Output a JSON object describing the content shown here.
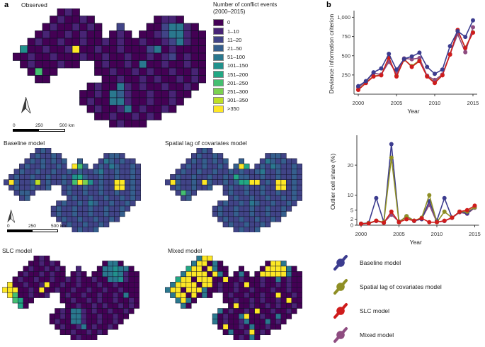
{
  "panels": {
    "a_label": "a",
    "b_label": "b"
  },
  "maps": {
    "legend": {
      "title_line1": "Number of conflict events",
      "title_line2": "(2000–2015)",
      "classes": [
        {
          "label": "0",
          "color": "#440154"
        },
        {
          "label": "1–10",
          "color": "#482475"
        },
        {
          "label": "11–20",
          "color": "#414487"
        },
        {
          "label": "21–50",
          "color": "#355f8d"
        },
        {
          "label": "51–100",
          "color": "#2a788e"
        },
        {
          "label": "101–150",
          "color": "#21918c"
        },
        {
          "label": "151–200",
          "color": "#22a884"
        },
        {
          "label": "201–250",
          "color": "#44bf70"
        },
        {
          "label": "251–300",
          "color": "#7ad151"
        },
        {
          "label": "301–350",
          "color": "#bddf26"
        },
        {
          "label": ">350",
          "color": "#fde725"
        }
      ]
    },
    "scale_bar": {
      "labels": [
        "0",
        "250",
        "500 km"
      ]
    },
    "items": [
      {
        "id": "observed",
        "title": "Observed",
        "grid": [
          "......010.................",
          ".....010010........0110...",
          "....01001010..2...0024410.",
          "...010010100.010.001244100",
          "..010010010010100100124100",
          ".5001001a00100100024010000",
          "00100100010010010010120100",
          ".01000100..010010400100100",
          "..0700.....001001010010010",
          "...00.......00100101001010",
          "..........010041010010010.",
          ".........001043100100100..",
          ".........01004410010010...",
          "..........010014010010....",
          "...........001001010......",
          ".............01000........"
        ]
      },
      {
        "id": "baseline",
        "title": "Baseline model",
        "grid": [
          "......232.................",
          ".....232232........2332...",
          "....23232323..3...2432322.",
          "...232232232.a73.232432232",
          "..232232232232322342232232",
          ".2322322322325632232232232",
          "2a322392322327a852322aa232",
          ".23223223..2322322322aa232",
          "..2332.....232232232232232",
          "...23.......23223223223232",
          "..........232232432232232.",
          ".........232232232232232..",
          ".........23223223223223...",
          "..........232232232232....",
          "...........232232232......",
          ".............23223........"
        ]
      },
      {
        "id": "spatial_lag",
        "title": "Spatial lag of covariates model",
        "grid": [
          "......232.................",
          ".....232232........2332...",
          "....23232323..3...2432322.",
          "...232232232.3a6.232432232",
          "..232232232232322342232232",
          ".2322322322326332232232232",
          "2a32232a32232366aa232aa232",
          ".23223223..2322322322aa232",
          "..2732.....232232232232232",
          "...23.......23223223223232",
          "..........232232432232232.",
          ".........232232232232232..",
          ".........23223223223223...",
          "..........232232232232....",
          "...........232232232......",
          ".............23223........"
        ]
      },
      {
        "id": "slc",
        "title": "SLC model",
        "grid": [
          "......010.................",
          ".....001010........0440...",
          "....01001010..1...0445440.",
          "...010010100.010.004454100",
          "..010010010010100100445100",
          ".a001001a00100100010010000",
          "aaa0010a001001001001001000",
          ".a7001001..010010010010400",
          "..7600.....001001010010010",
          "...60.......00100101001010",
          "..........010441010010010.",
          ".........001044100100100..",
          ".........01004410010010...",
          "..........010014010010....",
          "...........001001010......",
          ".............01000........"
        ]
      },
      {
        "id": "mixed",
        "title": "Mixed model",
        "grid": [
          "......4aa.................",
          ".....4aa040........0aa4...",
          "....6aa0a400..0...0aaaa40.",
          "...4aaaa0a40.040.0aaaaa400",
          "..6aa0aaa00a00100010040100",
          ".4aaaa0aa010010a0010010100",
          "4aa0aaa4001001001000100100",
          ".4aa0a040..0100100100a0010",
          "..4a40.....001001010010a00",
          "...40.......0a001001010010",
          "..........4010010a0010010.",
          ".........401004a00100400..",
          ".........40100140004010...",
          "..........0a0010400100....",
          "...........04001a010......",
          ".............01040........"
        ]
      }
    ]
  },
  "chart_data": [
    {
      "type": "line",
      "title": "",
      "xlabel": "Year",
      "ylabel": "Deviance information criterion",
      "x": [
        2000,
        2001,
        2002,
        2003,
        2004,
        2005,
        2006,
        2007,
        2008,
        2009,
        2010,
        2011,
        2012,
        2013,
        2014,
        2015
      ],
      "xticks": [
        2000,
        2005,
        2010,
        2015
      ],
      "yticks": [
        250,
        500,
        750,
        1000
      ],
      "ytick_labels": [
        "250",
        "500",
        "750",
        "1,000"
      ],
      "ylim": [
        0,
        1050
      ],
      "grid": "off",
      "series": [
        {
          "name": "Spatial lag of covariates model",
          "color": "#8f8f25",
          "values": [
            60,
            150,
            235,
            250,
            470,
            240,
            450,
            365,
            440,
            235,
            155,
            250,
            520,
            825,
            605,
            805
          ]
        },
        {
          "name": "Mixed model",
          "color": "#8e4c80",
          "values": [
            90,
            165,
            275,
            255,
            420,
            280,
            465,
            455,
            470,
            240,
            185,
            255,
            520,
            780,
            545,
            870
          ]
        },
        {
          "name": "SLC model",
          "color": "#cf1c1c",
          "values": [
            55,
            145,
            230,
            245,
            480,
            230,
            455,
            355,
            430,
            230,
            145,
            245,
            515,
            835,
            600,
            800
          ]
        },
        {
          "name": "Baseline model",
          "color": "#3c3c8f",
          "values": [
            105,
            170,
            285,
            335,
            525,
            320,
            460,
            490,
            540,
            355,
            265,
            320,
            625,
            820,
            745,
            960
          ]
        }
      ]
    },
    {
      "type": "line",
      "title": "",
      "xlabel": "Year",
      "ylabel": "Outlier cell share (%)",
      "x": [
        2000,
        2001,
        2002,
        2003,
        2004,
        2005,
        2006,
        2007,
        2008,
        2009,
        2010,
        2011,
        2012,
        2013,
        2014,
        2015
      ],
      "xticks": [
        2000,
        2005,
        2010,
        2015
      ],
      "yticks": [
        0,
        2,
        5,
        10,
        20
      ],
      "ytick_labels": [
        "0",
        "2",
        "5",
        "10",
        "20"
      ],
      "ylim": [
        0,
        29
      ],
      "grid": "off",
      "series": [
        {
          "name": "Mixed model",
          "color": "#8e4c80",
          "values": [
            0.4,
            0.6,
            1.4,
            0.9,
            3.5,
            1.2,
            2.8,
            1.4,
            2.2,
            6.8,
            1.0,
            1.4,
            2.4,
            4.3,
            3.8,
            5.8
          ]
        },
        {
          "name": "Baseline model",
          "color": "#3c3c8f",
          "values": [
            0.5,
            0.8,
            9.0,
            1.0,
            27.0,
            1.0,
            3.0,
            1.5,
            2.0,
            8.0,
            1.5,
            9.0,
            2.5,
            4.5,
            4.0,
            6.0
          ]
        },
        {
          "name": "Spatial lag of covariates model",
          "color": "#8f8f25",
          "values": [
            0.5,
            0.7,
            1.5,
            1.0,
            22.5,
            1.0,
            3.0,
            1.5,
            2.5,
            10.0,
            1.0,
            4.5,
            2.5,
            4.5,
            4.5,
            6.0
          ]
        },
        {
          "name": "SLC model",
          "color": "#cf1c1c",
          "values": [
            0.5,
            0.6,
            1.5,
            0.8,
            4.5,
            1.0,
            2.0,
            1.5,
            2.3,
            1.0,
            1.0,
            1.5,
            2.5,
            4.5,
            5.0,
            6.5
          ]
        }
      ]
    }
  ],
  "model_legend": {
    "items": [
      {
        "label": "Baseline model",
        "color": "#3c3c8f"
      },
      {
        "label": "Spatial lag of covariates model",
        "color": "#8f8f25"
      },
      {
        "label": "SLC model",
        "color": "#cf1c1c"
      },
      {
        "label": "Mixed model",
        "color": "#8e4c80"
      }
    ]
  }
}
